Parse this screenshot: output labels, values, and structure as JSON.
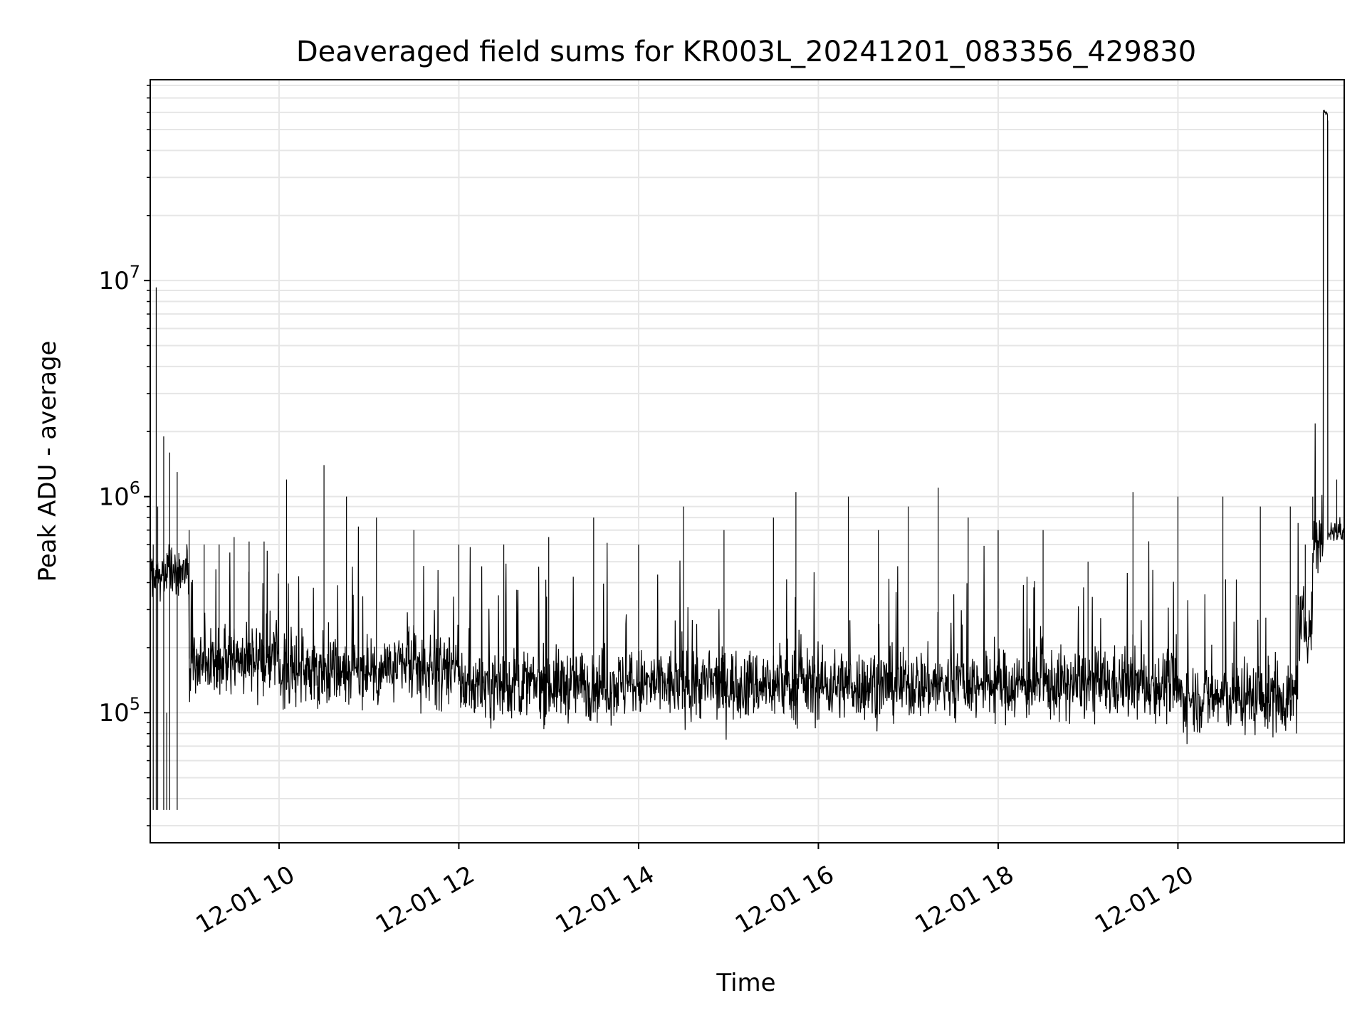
{
  "chart_data": {
    "type": "line",
    "title": "Deaveraged field sums for KR003L_20241201_083356_429830",
    "xlabel": "Time",
    "ylabel": "Peak ADU - average",
    "yscale": "log",
    "ylim": [
      25000,
      85000000
    ],
    "xlim": [
      "2024-12-01 08:34",
      "2024-12-01 21:51"
    ],
    "grid": true,
    "line_color": "#000000",
    "x_ticks": [
      {
        "value": "2024-12-01 10:00",
        "label": "12-01 10"
      },
      {
        "value": "2024-12-01 12:00",
        "label": "12-01 12"
      },
      {
        "value": "2024-12-01 14:00",
        "label": "12-01 14"
      },
      {
        "value": "2024-12-01 16:00",
        "label": "12-01 16"
      },
      {
        "value": "2024-12-01 18:00",
        "label": "12-01 18"
      },
      {
        "value": "2024-12-01 20:00",
        "label": "12-01 20"
      }
    ],
    "y_ticks": [
      {
        "value": 100000,
        "base": "10",
        "exp": "5"
      },
      {
        "value": 1000000,
        "base": "10",
        "exp": "6"
      },
      {
        "value": 10000000,
        "base": "10",
        "exp": "7"
      }
    ],
    "series": [
      {
        "points": [
          [
            "2024-12-01 08:34",
            800000
          ],
          [
            "2024-12-01 08:36",
            600000
          ],
          [
            "2024-12-01 08:38",
            9300000
          ],
          [
            "2024-12-01 08:39",
            900000
          ],
          [
            "2024-12-01 08:43",
            1900000
          ],
          [
            "2024-12-01 08:45",
            100000
          ],
          [
            "2024-12-01 08:47",
            1600000
          ],
          [
            "2024-12-01 08:52",
            1300000
          ],
          [
            "2024-12-01 09:00",
            700000
          ],
          [
            "2024-12-01 09:10",
            600000
          ],
          [
            "2024-12-01 09:20",
            600000
          ],
          [
            "2024-12-01 09:30",
            650000
          ],
          [
            "2024-12-01 09:40",
            620000
          ],
          [
            "2024-12-01 09:50",
            620000
          ],
          [
            "2024-12-01 10:05",
            1200000
          ],
          [
            "2024-12-01 10:30",
            1400000
          ],
          [
            "2024-12-01 10:45",
            1000000
          ],
          [
            "2024-12-01 11:05",
            800000
          ],
          [
            "2024-12-01 11:30",
            700000
          ],
          [
            "2024-12-01 12:00",
            600000
          ],
          [
            "2024-12-01 12:30",
            600000
          ],
          [
            "2024-12-01 13:00",
            650000
          ],
          [
            "2024-12-01 13:30",
            800000
          ],
          [
            "2024-12-01 14:00",
            600000
          ],
          [
            "2024-12-01 14:30",
            900000
          ],
          [
            "2024-12-01 14:57",
            700000
          ],
          [
            "2024-12-01 15:30",
            800000
          ],
          [
            "2024-12-01 15:45",
            1050000
          ],
          [
            "2024-12-01 16:20",
            1000000
          ],
          [
            "2024-12-01 16:40",
            700000
          ],
          [
            "2024-12-01 17:00",
            900000
          ],
          [
            "2024-12-01 17:20",
            1100000
          ],
          [
            "2024-12-01 17:40",
            800000
          ],
          [
            "2024-12-01 18:00",
            700000
          ],
          [
            "2024-12-01 18:30",
            700000
          ],
          [
            "2024-12-01 19:00",
            500000
          ],
          [
            "2024-12-01 19:30",
            1050000
          ],
          [
            "2024-12-01 20:00",
            1000000
          ],
          [
            "2024-12-01 20:30",
            1000000
          ],
          [
            "2024-12-01 20:55",
            900000
          ],
          [
            "2024-12-01 21:15",
            900000
          ],
          [
            "2024-12-01 21:25",
            600000
          ],
          [
            "2024-12-01 21:30",
            1000000
          ],
          [
            "2024-12-01 21:35",
            620000
          ],
          [
            "2024-12-01 21:37",
            60000000
          ],
          [
            "2024-12-01 21:40",
            55000000
          ],
          [
            "2024-12-01 21:42",
            700000
          ],
          [
            "2024-12-01 21:46",
            1200000
          ],
          [
            "2024-12-01 21:50",
            700000
          ]
        ]
      }
    ]
  }
}
